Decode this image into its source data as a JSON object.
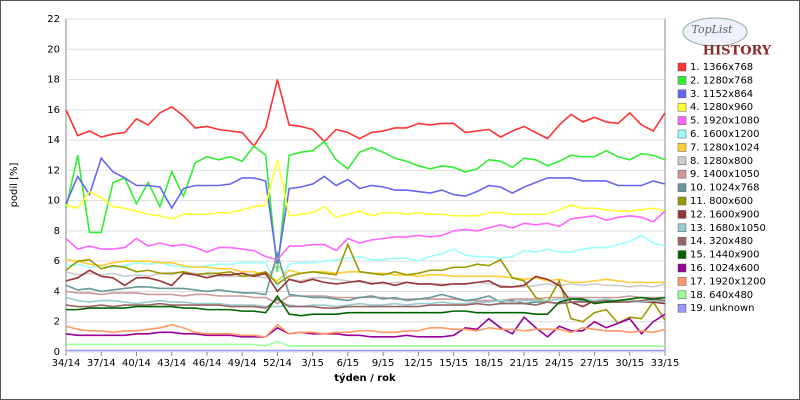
{
  "chart_data": {
    "type": "line",
    "ylabel": "podíl [%]",
    "xlabel": "týden / rok",
    "logo": {
      "top": "TopList",
      "bottom": "HISTORY"
    },
    "ylim": [
      0,
      22
    ],
    "yticks": [
      0,
      2,
      4,
      6,
      8,
      10,
      12,
      14,
      16,
      18,
      20,
      22
    ],
    "grid": true,
    "legend": "right",
    "categories": [
      "34/14",
      null,
      null,
      "37/14",
      null,
      null,
      "40/14",
      null,
      null,
      "43/14",
      null,
      null,
      "46/14",
      null,
      null,
      "49/14",
      null,
      null,
      "52/14",
      null,
      null,
      "3/15",
      null,
      null,
      "6/15",
      null,
      null,
      "9/15",
      null,
      null,
      "12/15",
      null,
      null,
      "15/15",
      null,
      null,
      "18/15",
      null,
      null,
      "21/15",
      null,
      null,
      "24/15",
      null,
      null,
      "27/15",
      null,
      null,
      "30/15",
      null,
      null,
      "33/15"
    ],
    "series": [
      {
        "name": "1. 1366x768",
        "color": "#ff3333",
        "values": [
          16.0,
          14.3,
          14.6,
          14.2,
          14.4,
          14.5,
          15.4,
          15.0,
          15.8,
          16.2,
          15.6,
          14.8,
          14.9,
          14.7,
          14.6,
          14.5,
          13.6,
          14.8,
          18.0,
          15.0,
          14.9,
          14.7,
          13.9,
          14.7,
          14.5,
          14.1,
          14.5,
          14.6,
          14.8,
          14.8,
          15.1,
          15.0,
          15.1,
          15.1,
          14.5,
          14.6,
          14.7,
          14.2,
          14.6,
          14.9,
          14.5,
          14.1,
          15.0,
          15.7,
          15.2,
          15.5,
          15.2,
          15.1,
          15.8,
          15.0,
          14.6,
          15.8
        ]
      },
      {
        "name": "2. 1280x768",
        "color": "#33ee33",
        "values": [
          9.5,
          13.0,
          7.9,
          7.9,
          11.2,
          11.5,
          9.8,
          11.2,
          9.6,
          11.9,
          10.3,
          12.5,
          12.9,
          12.7,
          12.9,
          12.6,
          13.6,
          13.0,
          5.3,
          13.0,
          13.2,
          13.3,
          13.9,
          12.7,
          12.1,
          13.2,
          13.5,
          13.2,
          12.8,
          12.6,
          12.3,
          12.1,
          12.3,
          12.2,
          11.9,
          12.1,
          12.7,
          12.6,
          12.2,
          12.8,
          12.7,
          12.3,
          12.6,
          13.0,
          12.9,
          12.9,
          13.3,
          12.9,
          12.7,
          13.1,
          13.0,
          12.7
        ]
      },
      {
        "name": "3. 1152x864",
        "color": "#6666ee",
        "values": [
          9.8,
          11.6,
          10.4,
          12.8,
          11.9,
          11.5,
          11.0,
          11.0,
          10.9,
          9.5,
          10.8,
          11.0,
          11.0,
          11.0,
          11.1,
          11.5,
          11.5,
          11.3,
          5.8,
          10.8,
          10.9,
          11.1,
          11.6,
          11.0,
          11.4,
          10.8,
          11.0,
          10.9,
          10.7,
          10.7,
          10.6,
          10.5,
          10.7,
          10.4,
          10.3,
          10.6,
          11.0,
          10.9,
          10.5,
          10.9,
          11.2,
          11.5,
          11.5,
          11.5,
          11.3,
          11.3,
          11.3,
          11.0,
          11.0,
          11.0,
          11.3,
          11.1
        ]
      },
      {
        "name": "4. 1280x960",
        "color": "#ffff33",
        "values": [
          9.7,
          9.5,
          10.6,
          10.2,
          9.6,
          9.5,
          9.3,
          9.1,
          9.0,
          8.8,
          9.1,
          9.1,
          9.1,
          9.2,
          9.2,
          9.4,
          9.6,
          9.7,
          12.7,
          9.0,
          9.1,
          9.2,
          9.6,
          8.9,
          9.1,
          9.3,
          9.0,
          9.2,
          9.2,
          9.1,
          9.2,
          9.1,
          9.1,
          9.0,
          9.0,
          9.0,
          9.2,
          9.2,
          9.1,
          9.1,
          9.1,
          9.1,
          9.4,
          9.7,
          9.5,
          9.5,
          9.4,
          9.3,
          9.3,
          9.4,
          9.5,
          9.3
        ]
      },
      {
        "name": "5. 1920x1080",
        "color": "#ff66ff",
        "values": [
          7.5,
          6.8,
          7.0,
          6.8,
          6.8,
          6.9,
          7.5,
          7.0,
          7.2,
          7.0,
          7.1,
          6.9,
          6.6,
          6.9,
          6.9,
          6.8,
          6.7,
          6.3,
          6.1,
          7.0,
          7.0,
          7.1,
          7.1,
          6.7,
          7.5,
          7.2,
          7.4,
          7.5,
          7.6,
          7.6,
          7.7,
          7.6,
          7.7,
          8.0,
          8.1,
          8.0,
          8.2,
          8.4,
          8.2,
          8.5,
          8.4,
          8.5,
          8.3,
          8.8,
          8.9,
          9.0,
          8.7,
          8.9,
          9.0,
          8.9,
          8.6,
          9.3
        ]
      },
      {
        "name": "6. 1600x1200",
        "color": "#99ffff",
        "values": [
          5.7,
          5.8,
          5.6,
          5.7,
          5.6,
          5.7,
          5.9,
          5.8,
          5.9,
          5.7,
          5.6,
          5.6,
          5.7,
          5.8,
          5.8,
          5.9,
          5.9,
          5.9,
          4.3,
          5.8,
          5.9,
          5.9,
          6.0,
          6.1,
          6.2,
          6.3,
          6.1,
          6.1,
          6.2,
          6.2,
          6.0,
          6.3,
          6.5,
          6.8,
          6.4,
          6.3,
          6.3,
          6.2,
          6.3,
          6.7,
          6.6,
          6.8,
          6.6,
          6.6,
          6.8,
          6.9,
          6.9,
          7.1,
          7.3,
          7.7,
          7.2,
          7.0
        ]
      },
      {
        "name": "7. 1280x1024",
        "color": "#ffcc33",
        "values": [
          6.1,
          6.0,
          5.8,
          5.7,
          5.9,
          6.0,
          6.0,
          6.0,
          5.9,
          5.9,
          5.7,
          5.6,
          5.6,
          5.5,
          5.5,
          5.3,
          5.3,
          5.1,
          4.7,
          5.4,
          5.2,
          5.3,
          5.3,
          5.2,
          5.3,
          5.3,
          5.2,
          5.2,
          5.1,
          5.1,
          5.0,
          5.1,
          5.1,
          5.0,
          5.0,
          5.0,
          5.0,
          5.0,
          4.9,
          4.8,
          4.9,
          4.7,
          4.8,
          4.6,
          4.6,
          4.7,
          4.8,
          4.7,
          4.6,
          4.6,
          4.6,
          4.6
        ]
      },
      {
        "name": "8. 1280x800",
        "color": "#cccccc",
        "values": [
          5.3,
          5.1,
          5.2,
          5.1,
          5.2,
          5.0,
          5.1,
          5.0,
          5.2,
          5.1,
          5.3,
          5.2,
          5.1,
          5.0,
          5.0,
          5.0,
          5.0,
          4.9,
          5.8,
          4.8,
          4.7,
          4.9,
          4.9,
          4.8,
          4.7,
          4.6,
          4.6,
          4.5,
          4.6,
          4.6,
          4.5,
          4.5,
          4.5,
          4.5,
          4.5,
          4.6,
          4.5,
          4.4,
          4.3,
          4.3,
          4.4,
          4.5,
          4.4,
          4.5,
          4.4,
          4.5,
          4.4,
          4.4,
          4.3,
          4.4,
          4.3,
          4.5
        ]
      },
      {
        "name": "9. 1400x1050",
        "color": "#cc9999",
        "values": [
          4.0,
          3.9,
          3.9,
          3.8,
          3.9,
          3.9,
          3.9,
          3.8,
          3.8,
          3.8,
          3.7,
          3.8,
          3.8,
          3.7,
          3.7,
          3.7,
          3.6,
          3.6,
          3.2,
          3.7,
          3.7,
          3.7,
          3.7,
          3.6,
          3.6,
          3.6,
          3.6,
          3.6,
          3.5,
          3.5,
          3.5,
          3.5,
          3.5,
          3.5,
          3.4,
          3.4,
          3.4,
          3.4,
          3.5,
          3.5,
          3.5,
          3.6,
          3.6,
          3.6,
          3.6,
          3.6,
          3.6,
          3.6,
          3.7,
          3.6,
          3.6,
          3.6
        ]
      },
      {
        "name": "10. 1024x768",
        "color": "#669999",
        "values": [
          4.4,
          4.1,
          4.2,
          4.0,
          4.1,
          4.2,
          4.3,
          4.3,
          4.2,
          4.2,
          4.2,
          4.1,
          4.0,
          4.1,
          4.0,
          3.9,
          3.9,
          3.8,
          6.5,
          3.8,
          3.7,
          3.6,
          3.6,
          3.5,
          3.4,
          3.6,
          3.7,
          3.5,
          3.6,
          3.4,
          3.5,
          3.6,
          3.8,
          3.6,
          3.4,
          3.5,
          3.7,
          3.3,
          3.4,
          3.2,
          3.3,
          3.3,
          3.2,
          3.3,
          3.4,
          3.3,
          3.4,
          3.4,
          3.4,
          3.3,
          3.4,
          3.3
        ]
      },
      {
        "name": "11. 800x600",
        "color": "#999900",
        "values": [
          5.4,
          6.0,
          6.1,
          5.5,
          5.7,
          5.6,
          5.3,
          5.4,
          5.2,
          5.2,
          5.3,
          5.1,
          5.2,
          5.2,
          5.3,
          5.0,
          5.1,
          5.3,
          4.5,
          5.0,
          5.2,
          5.3,
          5.2,
          5.1,
          7.1,
          5.3,
          5.2,
          5.1,
          5.3,
          5.1,
          5.2,
          5.4,
          5.4,
          5.6,
          5.6,
          5.8,
          5.7,
          6.1,
          4.9,
          4.7,
          3.6,
          3.3,
          4.7,
          2.2,
          2.0,
          2.6,
          2.8,
          1.9,
          2.3,
          2.2,
          3.3,
          2.1
        ]
      },
      {
        "name": "12. 1600x900",
        "color": "#993333",
        "values": [
          4.7,
          4.9,
          5.4,
          5.0,
          4.9,
          4.4,
          4.9,
          4.9,
          4.7,
          4.4,
          5.2,
          5.1,
          4.9,
          5.1,
          5.1,
          5.2,
          5.0,
          5.2,
          4.0,
          4.8,
          4.6,
          4.8,
          4.6,
          4.5,
          4.6,
          4.7,
          4.5,
          4.6,
          4.4,
          4.6,
          4.5,
          4.5,
          4.4,
          4.5,
          4.5,
          4.6,
          4.7,
          4.3,
          4.3,
          4.4,
          5.0,
          4.8,
          4.4,
          3.3,
          3.0,
          3.4,
          3.3,
          3.3,
          3.4,
          3.3,
          3.3,
          3.2
        ]
      },
      {
        "name": "13. 1680x1050",
        "color": "#99cccc",
        "values": [
          3.6,
          3.4,
          3.3,
          3.4,
          3.4,
          3.3,
          3.2,
          3.3,
          3.4,
          3.3,
          3.3,
          3.2,
          3.2,
          3.2,
          3.1,
          3.1,
          3.1,
          3.0,
          3.0,
          3.1,
          3.0,
          3.1,
          3.1,
          3.0,
          3.1,
          3.2,
          3.1,
          3.1,
          3.2,
          3.1,
          3.2,
          3.2,
          3.3,
          3.2,
          3.2,
          3.3,
          3.3,
          3.4,
          3.3,
          3.4,
          3.4,
          3.4,
          3.5,
          3.5,
          3.5,
          3.4,
          3.5,
          3.4,
          3.4,
          3.3,
          3.4,
          3.3
        ]
      },
      {
        "name": "14. 320x480",
        "color": "#996666",
        "values": [
          3.1,
          3.0,
          3.0,
          3.1,
          3.0,
          3.1,
          3.1,
          3.1,
          3.2,
          3.1,
          3.1,
          3.1,
          3.1,
          3.1,
          3.0,
          3.0,
          3.0,
          2.9,
          3.5,
          3.0,
          3.0,
          3.0,
          2.9,
          2.9,
          3.0,
          3.0,
          3.0,
          3.0,
          3.0,
          3.0,
          3.0,
          3.1,
          3.1,
          3.1,
          3.1,
          3.2,
          3.1,
          3.2,
          3.2,
          3.2,
          3.1,
          3.3,
          3.2,
          3.3,
          3.3,
          3.3,
          3.4,
          3.3,
          3.3,
          3.4,
          3.5,
          3.4
        ]
      },
      {
        "name": "15. 1440x900",
        "color": "#006600",
        "values": [
          2.8,
          2.8,
          2.9,
          2.9,
          2.9,
          2.9,
          3.0,
          3.0,
          3.0,
          3.0,
          2.9,
          2.9,
          2.8,
          2.8,
          2.8,
          2.7,
          2.7,
          2.6,
          3.7,
          2.5,
          2.4,
          2.5,
          2.5,
          2.5,
          2.6,
          2.6,
          2.6,
          2.6,
          2.6,
          2.6,
          2.6,
          2.6,
          2.6,
          2.7,
          2.7,
          2.6,
          2.6,
          2.6,
          2.6,
          2.6,
          2.5,
          2.5,
          3.3,
          3.5,
          3.5,
          3.2,
          3.3,
          3.4,
          3.5,
          3.6,
          3.5,
          3.6
        ]
      },
      {
        "name": "16. 1024x600",
        "color": "#990099",
        "values": [
          1.2,
          1.1,
          1.1,
          1.1,
          1.1,
          1.1,
          1.2,
          1.2,
          1.3,
          1.3,
          1.2,
          1.2,
          1.1,
          1.1,
          1.1,
          1.0,
          1.0,
          1.0,
          1.6,
          1.2,
          1.3,
          1.2,
          1.2,
          1.2,
          1.1,
          1.1,
          1.0,
          1.0,
          1.0,
          1.1,
          1.0,
          1.0,
          1.0,
          1.1,
          1.6,
          1.5,
          2.2,
          1.6,
          1.2,
          2.3,
          1.6,
          1.0,
          1.7,
          1.4,
          1.4,
          2.0,
          1.6,
          1.9,
          2.2,
          1.2,
          2.0,
          2.5
        ]
      },
      {
        "name": "17. 1920x1200",
        "color": "#ff9966",
        "values": [
          1.7,
          1.5,
          1.4,
          1.4,
          1.3,
          1.4,
          1.4,
          1.5,
          1.6,
          1.8,
          1.6,
          1.3,
          1.2,
          1.2,
          1.2,
          1.1,
          1.1,
          1.0,
          1.8,
          1.2,
          1.3,
          1.3,
          1.2,
          1.3,
          1.3,
          1.4,
          1.4,
          1.3,
          1.3,
          1.4,
          1.4,
          1.6,
          1.6,
          1.5,
          1.5,
          1.4,
          1.6,
          1.5,
          1.5,
          1.4,
          1.5,
          1.5,
          1.5,
          1.3,
          1.6,
          1.5,
          1.4,
          1.4,
          1.3,
          1.4,
          1.3,
          1.5
        ]
      },
      {
        "name": "18. 640x480",
        "color": "#99ff99",
        "values": [
          0.5,
          0.5,
          0.5,
          0.5,
          0.5,
          0.5,
          0.5,
          0.5,
          0.5,
          0.5,
          0.5,
          0.5,
          0.5,
          0.5,
          0.5,
          0.5,
          0.5,
          0.4,
          0.7,
          0.4,
          0.4,
          0.4,
          0.4,
          0.4,
          0.4,
          0.4,
          0.4,
          0.4,
          0.4,
          0.4,
          0.4,
          0.4,
          0.4,
          0.4,
          0.4,
          0.4,
          0.4,
          0.4,
          0.4,
          0.4,
          0.4,
          0.4,
          0.4,
          0.4,
          0.4,
          0.4,
          0.4,
          0.4,
          0.4,
          0.4,
          0.4,
          0.4
        ]
      },
      {
        "name": "19. unknown",
        "color": "#9999ff",
        "values": [
          0.1,
          0.1,
          0.1,
          0.1,
          0.1,
          0.1,
          0.1,
          0.1,
          0.1,
          0.1,
          0.1,
          0.1,
          0.1,
          0.1,
          0.1,
          0.1,
          0.1,
          0.1,
          0.1,
          0.1,
          0.1,
          0.1,
          0.1,
          0.1,
          0.1,
          0.1,
          0.1,
          0.1,
          0.1,
          0.1,
          0.1,
          0.1,
          0.1,
          0.1,
          0.1,
          0.1,
          0.1,
          0.1,
          0.1,
          0.1,
          0.1,
          0.1,
          0.1,
          0.1,
          0.1,
          0.1,
          0.1,
          0.1,
          0.1,
          0.1,
          0.1,
          0.1
        ]
      }
    ]
  }
}
